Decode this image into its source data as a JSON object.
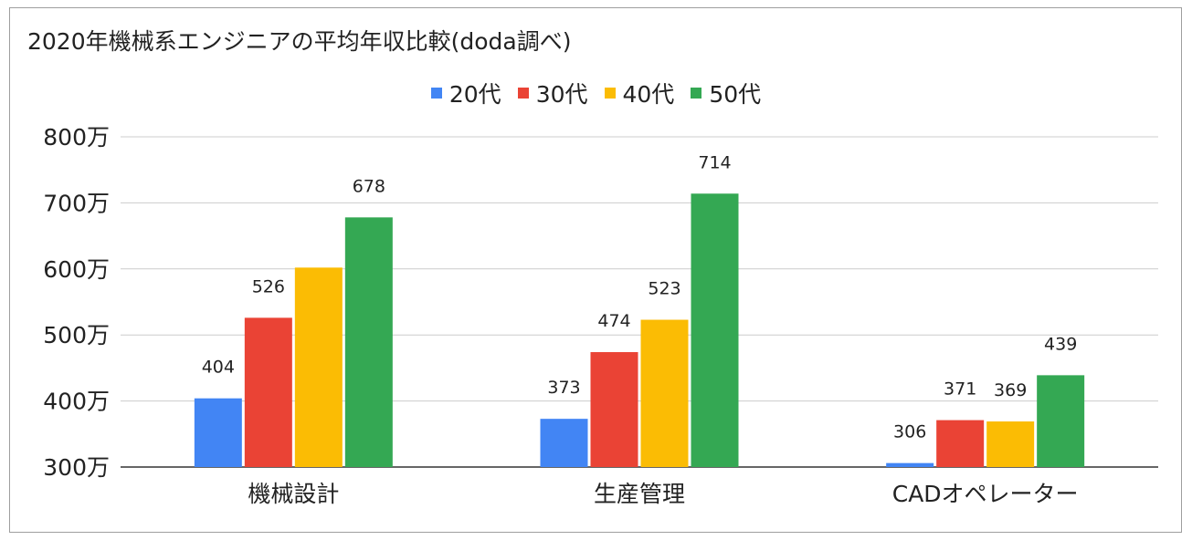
{
  "chart_data": {
    "type": "bar",
    "title": "2020年機械系エンジニアの平均年収比較(doda調べ)",
    "categories": [
      "機械設計",
      "生産管理",
      "CADオペレーター"
    ],
    "series": [
      {
        "name": "20代",
        "color": "#4285f4",
        "values": [
          404,
          373,
          306
        ]
      },
      {
        "name": "30代",
        "color": "#ea4335",
        "values": [
          526,
          474,
          371
        ]
      },
      {
        "name": "40代",
        "color": "#fbbc04",
        "values": [
          602,
          523,
          369
        ]
      },
      {
        "name": "50代",
        "color": "#34a853",
        "values": [
          678,
          714,
          439
        ]
      }
    ],
    "data_labels": [
      [
        "404",
        "526",
        "",
        "678"
      ],
      [
        "373",
        "474",
        "523",
        "714"
      ],
      [
        "306",
        "371",
        "369",
        "439"
      ]
    ],
    "ylim": [
      300,
      800
    ],
    "yticks": [
      300,
      400,
      500,
      600,
      700,
      800
    ],
    "ytick_labels": [
      "300万",
      "400万",
      "500万",
      "600万",
      "700万",
      "800万"
    ],
    "legend_position": "top-center",
    "grid": true
  }
}
